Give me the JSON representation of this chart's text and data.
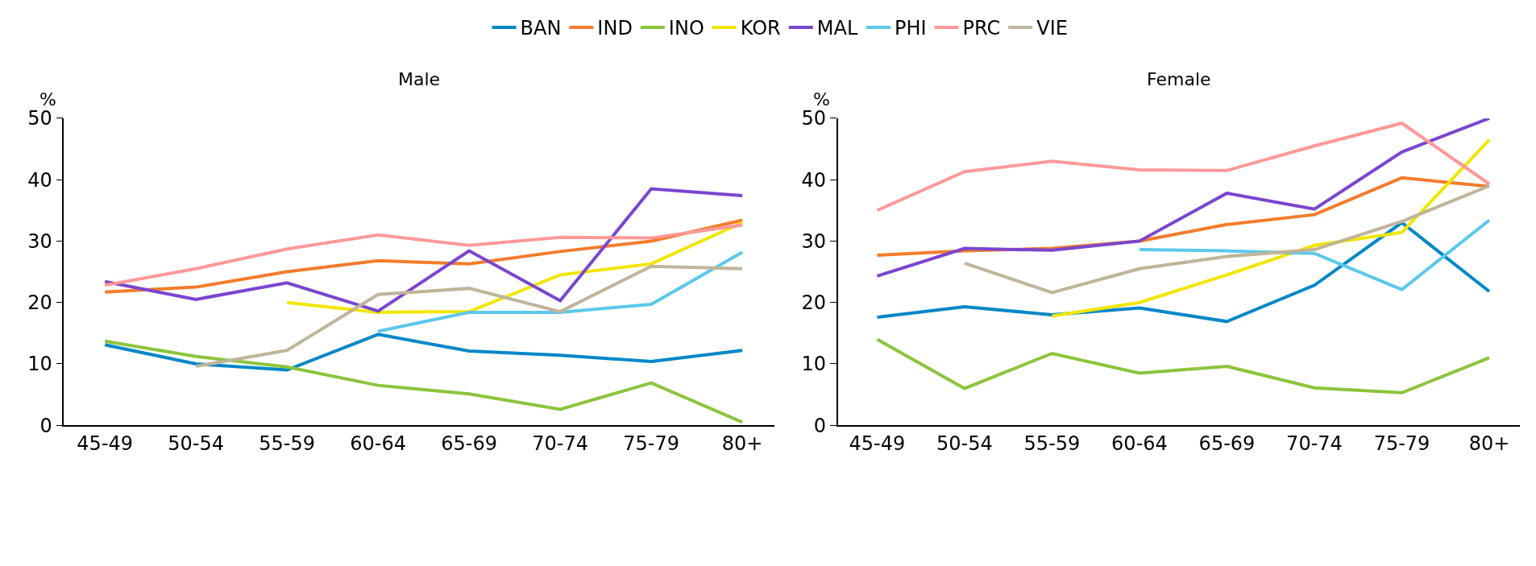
{
  "chart_data": [
    {
      "type": "line",
      "title": "Male",
      "ylabel": "%",
      "categories": [
        "45-49",
        "50-54",
        "55-59",
        "60-64",
        "65-69",
        "70-74",
        "75-79",
        "80+"
      ],
      "ylim": [
        0,
        50
      ],
      "yticks": [
        0,
        10,
        20,
        30,
        40,
        50
      ],
      "legend": "top",
      "marker": "none",
      "line_style": "solid",
      "series": [
        {
          "name": "BAN",
          "color": "#0087c8",
          "values": [
            13.1,
            10,
            9,
            14.8,
            12.1,
            11.4,
            10.4,
            12.2
          ]
        },
        {
          "name": "IND",
          "color": "#f47c2c",
          "values": [
            21.7,
            22.5,
            25,
            26.8,
            26.3,
            28.3,
            30,
            33.4
          ]
        },
        {
          "name": "INO",
          "color": "#8cc43c",
          "values": [
            13.7,
            11.2,
            9.5,
            6.5,
            5.1,
            2.6,
            6.9,
            0.5
          ]
        },
        {
          "name": "KOR",
          "color": "#f2e600",
          "values": [
            null,
            null,
            20,
            18.4,
            18.5,
            24.5,
            26.3,
            33
          ]
        },
        {
          "name": "MAL",
          "color": "#7a45d0",
          "values": [
            23.4,
            20.5,
            23.2,
            18.6,
            28.4,
            20.3,
            38.5,
            37.4
          ]
        },
        {
          "name": "PHI",
          "color": "#5bc8ec",
          "values": [
            null,
            null,
            null,
            15.3,
            18.4,
            18.4,
            19.7,
            28.2
          ]
        },
        {
          "name": "PRC",
          "color": "#ff9999",
          "values": [
            22.8,
            25.5,
            28.7,
            31,
            29.3,
            30.6,
            30.5,
            32.6
          ]
        },
        {
          "name": "VIE",
          "color": "#c0b49a",
          "values": [
            null,
            9.6,
            12.2,
            21.3,
            22.3,
            18.5,
            25.9,
            25.5
          ]
        }
      ]
    },
    {
      "type": "line",
      "title": "Female",
      "ylabel": "%",
      "categories": [
        "45-49",
        "50-54",
        "55-59",
        "60-64",
        "65-69",
        "70-74",
        "75-79",
        "80+"
      ],
      "ylim": [
        0,
        50
      ],
      "yticks": [
        0,
        10,
        20,
        30,
        40,
        50
      ],
      "marker": "none",
      "line_style": "solid",
      "series": [
        {
          "color": "#0087c8",
          "values": [
            17.6,
            19.3,
            18,
            19.1,
            16.9,
            22.8,
            33,
            21.8
          ]
        },
        {
          "color": "#f47c2c",
          "values": [
            27.7,
            28.4,
            28.8,
            30,
            32.7,
            34.3,
            40.3,
            38.9
          ]
        },
        {
          "color": "#8cc43c",
          "values": [
            14,
            6,
            11.7,
            8.5,
            9.6,
            6.1,
            5.3,
            11
          ]
        },
        {
          "color": "#f2e600",
          "values": [
            null,
            null,
            17.8,
            20,
            24.5,
            29.3,
            31.4,
            46.5
          ]
        },
        {
          "color": "#7a45d0",
          "values": [
            24.3,
            28.8,
            28.5,
            30,
            37.8,
            35.2,
            44.5,
            50
          ]
        },
        {
          "color": "#5bc8ec",
          "values": [
            null,
            null,
            null,
            28.6,
            28.4,
            28,
            22.1,
            33.4
          ]
        },
        {
          "color": "#ff9999",
          "values": [
            35,
            41.3,
            43,
            41.6,
            41.5,
            45.5,
            49.2,
            39.3
          ]
        },
        {
          "color": "#c0b49a",
          "values": [
            null,
            26.4,
            21.6,
            25.5,
            27.5,
            28.6,
            33.2,
            39
          ]
        }
      ]
    }
  ]
}
